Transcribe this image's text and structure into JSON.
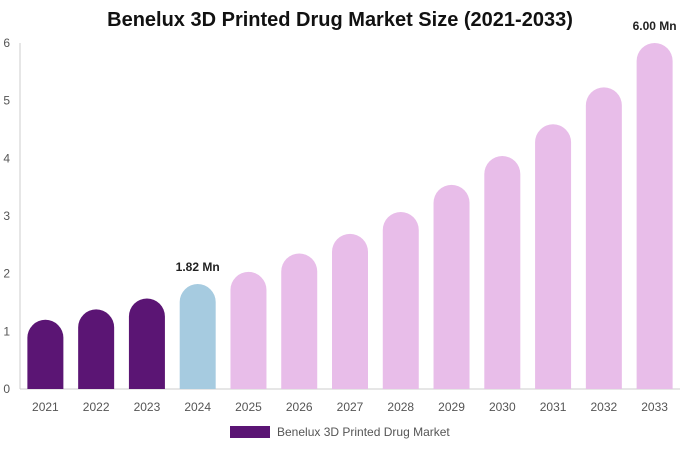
{
  "chart_data": {
    "type": "bar",
    "title": "Benelux 3D Printed Drug Market Size (2021-2033)",
    "categories": [
      "2021",
      "2022",
      "2023",
      "2024",
      "2025",
      "2026",
      "2027",
      "2028",
      "2029",
      "2030",
      "2031",
      "2032",
      "2033"
    ],
    "series": [
      {
        "name": "Benelux 3D Printed Drug Market",
        "values": [
          1.2,
          1.38,
          1.57,
          1.82,
          2.03,
          2.35,
          2.69,
          3.07,
          3.54,
          4.04,
          4.59,
          5.23,
          6.0
        ]
      }
    ],
    "data_labels": [
      {
        "category": "2024",
        "text": "1.82 Mn"
      },
      {
        "category": "2033",
        "text": "6.00 Mn"
      }
    ],
    "y_ticks": [
      "0",
      "1",
      "2",
      "3",
      "4",
      "5",
      "6"
    ],
    "ylim": [
      0,
      6
    ],
    "grid": false,
    "legend_position": "bottom",
    "colors": {
      "historical": "#5b1574",
      "base_year": "#a6cbe0",
      "forecast": "#e8bde9",
      "axis": "#cccccc"
    },
    "bar_roles": [
      "historical",
      "historical",
      "historical",
      "base_year",
      "forecast",
      "forecast",
      "forecast",
      "forecast",
      "forecast",
      "forecast",
      "forecast",
      "forecast",
      "forecast"
    ]
  }
}
